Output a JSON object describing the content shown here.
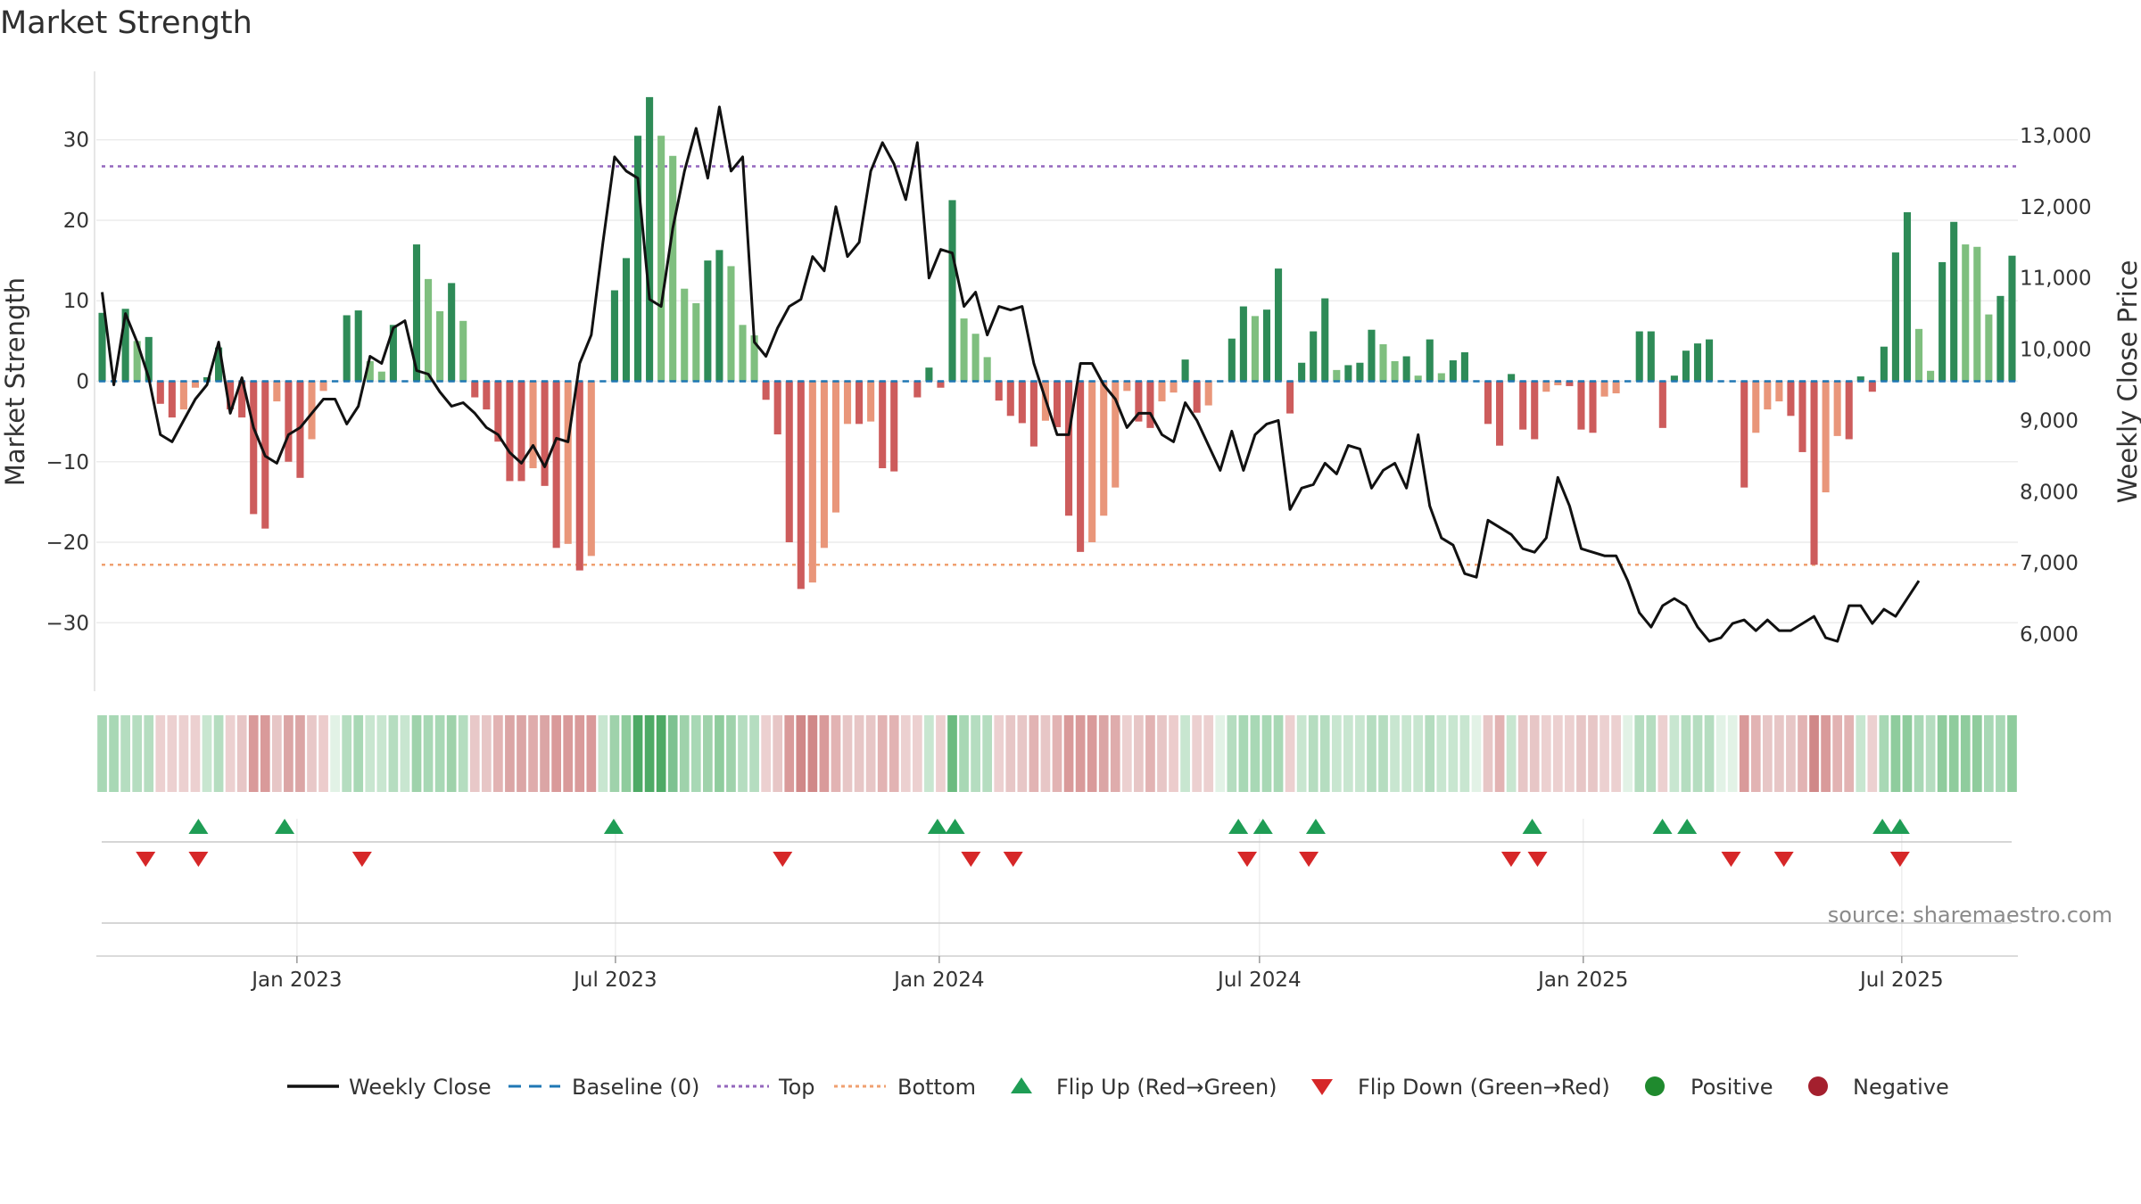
{
  "title": "Market Strength",
  "source_label": "source: sharemaestro.com",
  "chart_data": {
    "type": "bar+line",
    "title": "Market Strength",
    "ylabel_left": "Market Strength",
    "ylabel_right": "Weekly Close Price",
    "ylim_left": [
      -38.5,
      38.5
    ],
    "ylim_right": [
      5200,
      13900
    ],
    "left_ticks": [
      30,
      20,
      10,
      0,
      -10,
      -20,
      -30
    ],
    "left_tick_labels": [
      "30",
      "20",
      "10",
      "0",
      "−10",
      "−20",
      "−30"
    ],
    "right_ticks": [
      13000,
      12000,
      11000,
      10000,
      9000,
      8000,
      7000,
      6000
    ],
    "right_tick_labels": [
      "13,000",
      "12,000",
      "11,000",
      "10,000",
      "9,000",
      "8,000",
      "7,000",
      "6,000"
    ],
    "x_start": "2022-09-09",
    "x_end": "2025-09-05",
    "x_tick_dates": [
      "2023-01-01",
      "2023-07-01",
      "2024-01-01",
      "2024-07-01",
      "2025-01-01",
      "2025-07-01"
    ],
    "x_tick_labels": [
      "Jan 2023",
      "Jul 2023",
      "Jan 2024",
      "Jul 2024",
      "Jan 2025",
      "Jul 2025"
    ],
    "top_level": 26.7,
    "bottom_level": -22.8,
    "strength": [
      8.5,
      0,
      9,
      5,
      5.5,
      -2.8,
      -4.5,
      -3.5,
      -0.8,
      0.5,
      4.2,
      -3.5,
      -4.5,
      -16.5,
      -18.3,
      -2.5,
      -10,
      -12,
      -7.2,
      -1.2,
      0,
      8.2,
      8.8,
      2.5,
      1.2,
      7,
      0,
      17,
      12.7,
      8.7,
      12.2,
      7.5,
      -2,
      -3.5,
      -7.5,
      -12.4,
      -12.4,
      -10.8,
      -13,
      -20.7,
      -20.2,
      -23.5,
      -21.7,
      0,
      11.3,
      15.3,
      30.5,
      35.3,
      30.5,
      28,
      11.5,
      9.7,
      15,
      16.3,
      14.3,
      7,
      5.7,
      -2.3,
      -6.6,
      -20,
      -25.8,
      -25,
      -20.7,
      -16.3,
      -5.3,
      -5.3,
      -5,
      -10.8,
      -11.2,
      0,
      -2,
      1.7,
      -0.8,
      22.5,
      7.8,
      5.9,
      3,
      -2.4,
      -4.3,
      -5.2,
      -8.1,
      -4.9,
      -5.7,
      -16.7,
      -21.2,
      -20,
      -16.7,
      -13.2,
      -1.2,
      -5,
      -5.8,
      -2.5,
      -1.4,
      2.7,
      -3.9,
      -3,
      0,
      5.3,
      9.3,
      8.1,
      8.9,
      14,
      -4,
      2.3,
      6.2,
      10.3,
      1.4,
      2,
      2.3,
      6.4,
      4.6,
      2.5,
      3.1,
      0.7,
      5.2,
      1,
      2.6,
      3.6,
      0,
      -5.3,
      -8,
      0.9,
      -6,
      -7.2,
      -1.3,
      -0.5,
      -0.6,
      -6,
      -6.4,
      -1.9,
      -1.5,
      0,
      6.2,
      6.2,
      -5.8,
      0.7,
      3.8,
      4.7,
      5.2,
      0,
      0,
      -13.2,
      -6.4,
      -3.5,
      -2.5,
      -4.3,
      -8.8,
      -22.8,
      -13.8,
      -6.8,
      -7.2,
      0.6,
      -1.3,
      4.3,
      16,
      21,
      6.5,
      1.3,
      14.8,
      19.8,
      17,
      16.7,
      8.3,
      10.6,
      15.6
    ],
    "close": [
      10800,
      9500,
      10500,
      10100,
      9600,
      8800,
      8700,
      9000,
      9300,
      9500,
      10100,
      9100,
      9600,
      8900,
      8500,
      8400,
      8800,
      8900,
      9100,
      9300,
      9300,
      8950,
      9200,
      9900,
      9800,
      10300,
      10400,
      9700,
      9650,
      9400,
      9200,
      9250,
      9100,
      8900,
      8800,
      8550,
      8400,
      8650,
      8350,
      8750,
      8700,
      9800,
      10200,
      11500,
      12700,
      12500,
      12400,
      10700,
      10600,
      11700,
      12500,
      13100,
      12400,
      13400,
      12500,
      12700,
      10100,
      9900,
      10300,
      10600,
      10700,
      11300,
      11100,
      12000,
      11300,
      11500,
      12500,
      12900,
      12600,
      12100,
      12900,
      11000,
      11400,
      11350,
      10600,
      10800,
      10200,
      10600,
      10550,
      10600,
      9800,
      9300,
      8800,
      8800,
      9800,
      9800,
      9500,
      9300,
      8900,
      9100,
      9100,
      8800,
      8700,
      9250,
      9000,
      8650,
      8300,
      8850,
      8300,
      8800,
      8950,
      9000,
      7750,
      8050,
      8100,
      8400,
      8250,
      8650,
      8600,
      8050,
      8300,
      8400,
      8050,
      8800,
      7800,
      7350,
      7250,
      6850,
      6800,
      7600,
      7500,
      7400,
      7200,
      7150,
      7350,
      8200,
      7800,
      7200,
      7150,
      7100,
      7100,
      6750,
      6300,
      6100,
      6400,
      6500,
      6400,
      6100,
      5900,
      5950,
      6150,
      6200,
      6050,
      6200,
      6050,
      6050,
      6150,
      6250,
      5950,
      5900,
      6400,
      6400,
      6150,
      6350,
      6250,
      6500,
      6750
    ],
    "regime_colors": [
      "#a8d8b5",
      "#a8d8b5",
      "#b5ddc0",
      "#b5ddc0",
      "#b5ddc0",
      "#ecd0d0",
      "#ecd0d0",
      "#ecd0d0",
      "#ecd0d0",
      "#c8e6d0",
      "#b5ddc0",
      "#ecd0d0",
      "#e7c6c6",
      "#d99a9a",
      "#d99a9a",
      "#e7c6c6",
      "#dba5a5",
      "#dba5a5",
      "#e8c8c8",
      "#eccccc",
      "#e2f2e6",
      "#b5ddc0",
      "#a8d8b5",
      "#c8e6d0",
      "#c8e6d0",
      "#b5ddc0",
      "#c8e6d0",
      "#9fd2ab",
      "#a8d8b5",
      "#a8d8b5",
      "#9fd2ab",
      "#b5ddc0",
      "#e8c8c8",
      "#e7c6c6",
      "#e2b3b3",
      "#dba5a5",
      "#dba5a5",
      "#dfacac",
      "#dba5a5",
      "#d99a9a",
      "#d99a9a",
      "#d99a9a",
      "#d99a9a",
      "#c8e6d0",
      "#9fd2ab",
      "#8fcc9d",
      "#4eaa66",
      "#4eaa66",
      "#4eaa66",
      "#7dc291",
      "#9fd2ab",
      "#a8d8b5",
      "#9fd2ab",
      "#8fcc9d",
      "#9fd2ab",
      "#b5ddc0",
      "#b5ddc0",
      "#ecd0d0",
      "#e7c6c6",
      "#d99a9a",
      "#d08888",
      "#d08888",
      "#d99a9a",
      "#e2b3b3",
      "#e7c6c6",
      "#e7c6c6",
      "#e7c6c6",
      "#e2b3b3",
      "#e2b3b3",
      "#ecd0d0",
      "#ecd0d0",
      "#c8e6d0",
      "#ecd0d0",
      "#6cbb80",
      "#a8d8b5",
      "#b5ddc0",
      "#b5ddc0",
      "#ecd0d0",
      "#e7c6c6",
      "#e7c6c6",
      "#e2b3b3",
      "#e7c6c6",
      "#e2b3b3",
      "#d99a9a",
      "#d99a9a",
      "#d99a9a",
      "#dba5a5",
      "#dfacac",
      "#ecd0d0",
      "#e7c6c6",
      "#e2b3b3",
      "#e7c6c6",
      "#eccccc",
      "#c8e6d0",
      "#ecd0d0",
      "#ecd0d0",
      "#e2f2e6",
      "#b5ddc0",
      "#a8d8b5",
      "#a8d8b5",
      "#a8d8b5",
      "#a8d8b5",
      "#ecd0d0",
      "#c8e6d0",
      "#b5ddc0",
      "#b5ddc0",
      "#c8e6d0",
      "#c8e6d0",
      "#c8e6d0",
      "#b5ddc0",
      "#b5ddc0",
      "#c8e6d0",
      "#c8e6d0",
      "#c8e6d0",
      "#b5ddc0",
      "#c8e6d0",
      "#c8e6d0",
      "#c8e6d0",
      "#e2f2e6",
      "#e7c6c6",
      "#e2b3b3",
      "#c8e6d0",
      "#e7c6c6",
      "#e7c6c6",
      "#ecd0d0",
      "#ecd0d0",
      "#ecd0d0",
      "#e7c6c6",
      "#e7c6c6",
      "#ecd0d0",
      "#ecd0d0",
      "#e2f2e6",
      "#b5ddc0",
      "#b5ddc0",
      "#ecd0d0",
      "#c8e6d0",
      "#b5ddc0",
      "#b5ddc0",
      "#b5ddc0",
      "#e2f2e6",
      "#e2f2e6",
      "#d99a9a",
      "#e2b3b3",
      "#e7c6c6",
      "#e7c6c6",
      "#e7c6c6",
      "#e2b3b3",
      "#d08888",
      "#d99a9a",
      "#e2b3b3",
      "#e2b3b3",
      "#c8e6d0",
      "#ecd0d0",
      "#a8d8b5",
      "#8fcc9d",
      "#8fcc9d",
      "#a8d8b5",
      "#b5ddc0",
      "#8fcc9d",
      "#8fcc9d",
      "#8fcc9d",
      "#8fcc9d",
      "#a8d8b5",
      "#a8d8b5",
      "#8fcc9d"
    ],
    "flip_up_dates": [
      "2022-11-06",
      "2022-12-25",
      "2023-06-30",
      "2023-12-31",
      "2024-01-10",
      "2024-06-19",
      "2024-07-03",
      "2024-08-02",
      "2024-12-03",
      "2025-02-15",
      "2025-03-01",
      "2025-06-20",
      "2025-06-30"
    ],
    "flip_down_dates": [
      "2022-10-07",
      "2022-11-06",
      "2023-02-07",
      "2023-10-04",
      "2024-01-19",
      "2024-02-12",
      "2024-06-24",
      "2024-07-29",
      "2024-11-21",
      "2024-12-06",
      "2025-03-26",
      "2025-04-25",
      "2025-06-30"
    ],
    "legend": [
      {
        "label": "Weekly Close",
        "kind": "line",
        "color": "#111111"
      },
      {
        "label": "Baseline (0)",
        "kind": "dash",
        "color": "#1f77b4"
      },
      {
        "label": "Top",
        "kind": "dot",
        "color": "#9467bd"
      },
      {
        "label": "Bottom",
        "kind": "dot",
        "color": "#f0a070"
      },
      {
        "label": "Flip Up (Red→Green)",
        "kind": "tri-up",
        "color": "#1f9d55"
      },
      {
        "label": "Flip Down (Green→Red)",
        "kind": "tri-down",
        "color": "#d62728"
      },
      {
        "label": "Positive",
        "kind": "dot-marker",
        "color": "#1f8a2e"
      },
      {
        "label": "Negative",
        "kind": "dot-marker",
        "color": "#a4202e"
      }
    ],
    "colors": {
      "pos_dark": "#2e8b57",
      "pos_light": "#7fbf7f",
      "neg_dark": "#cd5c5c",
      "neg_light": "#e9967a",
      "top_line": "#9467bd",
      "bottom_line": "#f0a070",
      "baseline": "#1f77b4",
      "close_line": "#111111",
      "flip_up": "#1f9d55",
      "flip_down": "#d62728",
      "grid": "#ececec"
    }
  }
}
